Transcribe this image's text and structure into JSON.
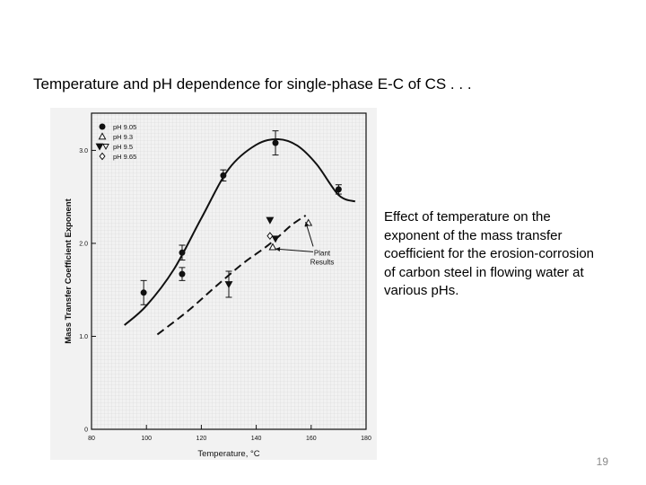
{
  "slide": {
    "title": "Temperature and pH dependence for single-phase E-C of CS . . .",
    "caption": "Effect of temperature on the exponent of the mass transfer coefficient for the erosion-corrosion of carbon steel in flowing water at various pHs.",
    "slide_number": "19"
  },
  "chart_data": {
    "type": "scatter",
    "title": "",
    "xlabel": "Temperature, °C",
    "ylabel": "Mass Transfer Coefficient Exponent",
    "xlim": [
      80,
      180
    ],
    "ylim": [
      0,
      3.4
    ],
    "x_ticks": [
      80,
      100,
      120,
      140,
      160,
      180
    ],
    "x_tick_labels": [
      "80",
      "100",
      "120",
      "140",
      "160",
      "180"
    ],
    "y_ticks": [
      0,
      1.0,
      2.0,
      3.0
    ],
    "y_tick_labels": [
      "0",
      "1.0",
      "2.0",
      "3.0"
    ],
    "grid": true,
    "legend_position": "top-left",
    "series": [
      {
        "name": "pH 9.05",
        "marker": "filled-circle",
        "x": [
          99,
          113,
          113,
          128,
          147,
          170
        ],
        "y": [
          1.47,
          1.9,
          1.67,
          2.73,
          3.08,
          2.58
        ],
        "err": [
          0.13,
          0.08,
          0.07,
          0.06,
          0.13,
          0.05
        ]
      },
      {
        "name": "pH 9.3",
        "marker": "open-triangle-up",
        "x": [
          146,
          159
        ],
        "y": [
          1.96,
          2.22
        ]
      },
      {
        "name": "pH 9.5",
        "marker": "filled-triangle-down",
        "x": [
          130,
          145,
          147
        ],
        "y": [
          1.56,
          2.25,
          2.05
        ],
        "err": [
          0.14,
          0,
          0
        ]
      },
      {
        "name": "pH 9.65",
        "marker": "open-diamond",
        "x": [
          145
        ],
        "y": [
          2.08
        ]
      }
    ],
    "curves": [
      {
        "style": "solid",
        "x": [
          92,
          100,
          110,
          120,
          130,
          140,
          148,
          155,
          162,
          170,
          176
        ],
        "y": [
          1.12,
          1.33,
          1.72,
          2.27,
          2.8,
          3.06,
          3.12,
          3.05,
          2.85,
          2.52,
          2.45
        ]
      },
      {
        "style": "dashed",
        "x": [
          104,
          115,
          125,
          135,
          143,
          148,
          153,
          158
        ],
        "y": [
          1.02,
          1.27,
          1.53,
          1.78,
          1.95,
          2.07,
          2.2,
          2.3
        ]
      }
    ],
    "annotations": [
      {
        "text_lines": [
          "Plant",
          "Results"
        ],
        "x": 164,
        "y": 1.87,
        "arrow_targets": [
          [
            158,
            2.23
          ],
          [
            147,
            1.94
          ]
        ]
      }
    ]
  }
}
